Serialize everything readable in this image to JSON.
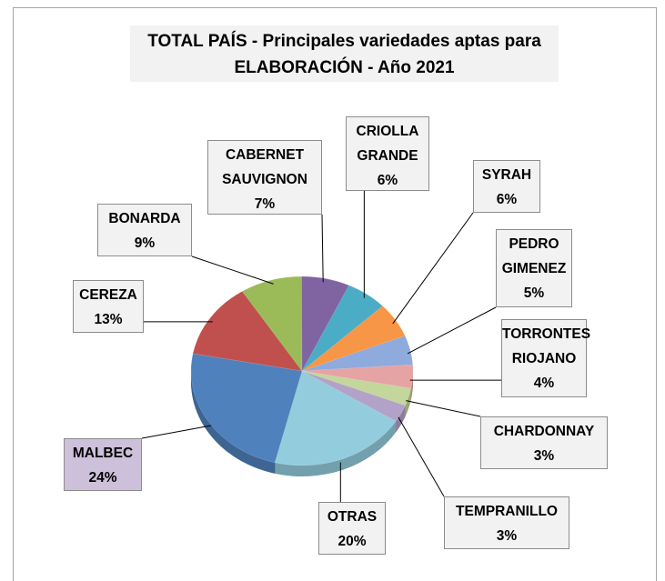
{
  "chart_data": {
    "type": "pie",
    "title": "TOTAL PAÍS - Principales variedades aptas para ELABORACIÓN - Año 2021",
    "categories": [
      "CRIOLLA GRANDE",
      "SYRAH",
      "PEDRO GIMENEZ",
      "TORRONTES RIOJANO",
      "CHARDONNAY",
      "TEMPRANILLO",
      "OTRAS",
      "MALBEC",
      "CEREZA",
      "BONARDA",
      "CABERNET SAUVIGNON"
    ],
    "values": [
      6,
      6,
      5,
      4,
      3,
      3,
      20,
      24,
      13,
      9,
      7
    ],
    "value_labels": [
      "6%",
      "6%",
      "5%",
      "4%",
      "3%",
      "3%",
      "20%",
      "24%",
      "13%",
      "9%",
      "7%"
    ],
    "colors": [
      "#4bacc6",
      "#f79646",
      "#8faadc",
      "#e6a3a3",
      "#c3d69b",
      "#b3a2c7",
      "#93cddd",
      "#4f81bd",
      "#c0504d",
      "#9bbb59",
      "#8064a2"
    ]
  }
}
